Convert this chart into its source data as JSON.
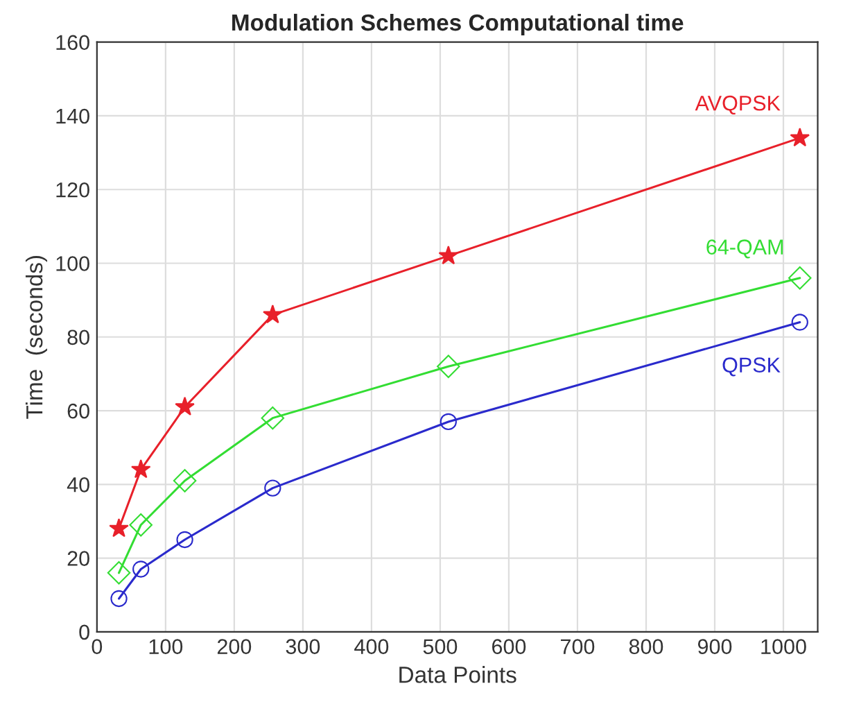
{
  "chart_data": {
    "type": "line",
    "title": "Modulation Schemes Computational time",
    "xlabel": "Data Points",
    "ylabel": "Time  (seconds)",
    "x": [
      32,
      64,
      128,
      256,
      512,
      1024
    ],
    "series": [
      {
        "name": "AVQPSK",
        "color": "#e8202a",
        "marker": "star",
        "values": [
          28,
          44,
          61,
          86,
          102,
          134
        ]
      },
      {
        "name": "64-QAM",
        "color": "#33dd33",
        "marker": "diamond",
        "values": [
          16,
          29,
          41,
          58,
          72,
          96
        ]
      },
      {
        "name": "QPSK",
        "color": "#2a2acc",
        "marker": "circle",
        "values": [
          9,
          17,
          25,
          39,
          57,
          84
        ]
      }
    ],
    "xlim": [
      0,
      1050
    ],
    "xticks": [
      0,
      100,
      200,
      300,
      400,
      500,
      600,
      700,
      800,
      900,
      1000
    ],
    "ylim": [
      0,
      160
    ],
    "yticks": [
      0,
      20,
      40,
      60,
      80,
      100,
      120,
      140,
      160
    ],
    "grid": true,
    "line_style": "solid"
  }
}
